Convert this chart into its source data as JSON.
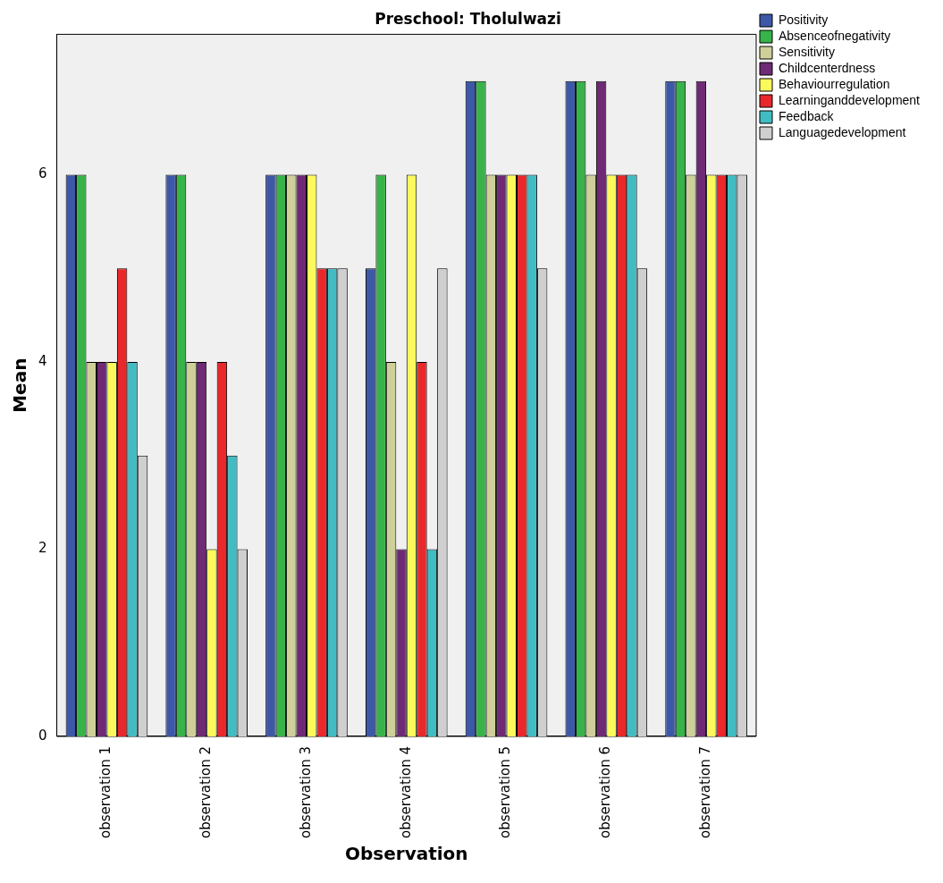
{
  "chart_data": {
    "type": "bar",
    "title": "Preschool: Tholulwazi",
    "xlabel": "Observation",
    "ylabel": "Mean",
    "categories": [
      "observation 1",
      "observation 2",
      "observation 3",
      "observation 4",
      "observation 5",
      "observation 6",
      "observation 7"
    ],
    "series": [
      {
        "name": "Positivity",
        "color": "#3e58a8",
        "values": [
          6,
          6,
          6,
          5,
          7,
          7,
          7
        ]
      },
      {
        "name": "Absenceofnegativity",
        "color": "#37b34a",
        "values": [
          6,
          6,
          6,
          6,
          7,
          7,
          7
        ]
      },
      {
        "name": "Sensitivity",
        "color": "#cfcf9a",
        "values": [
          4,
          4,
          6,
          4,
          6,
          6,
          6
        ]
      },
      {
        "name": "Childcenterdness",
        "color": "#6e2a74",
        "values": [
          4,
          4,
          6,
          2,
          6,
          7,
          7
        ]
      },
      {
        "name": "Behaviourregulation",
        "color": "#fbf95b",
        "values": [
          4,
          2,
          6,
          6,
          6,
          6,
          6
        ]
      },
      {
        "name": "Learninganddevelopment",
        "color": "#e8282b",
        "values": [
          5,
          4,
          5,
          4,
          6,
          6,
          6
        ]
      },
      {
        "name": "Feedback",
        "color": "#41bcc3",
        "values": [
          4,
          3,
          5,
          2,
          6,
          6,
          6
        ]
      },
      {
        "name": "Languagedevelopment",
        "color": "#cfcfcf",
        "values": [
          3,
          2,
          5,
          5,
          5,
          5,
          6
        ]
      }
    ],
    "ylim": [
      0,
      7.5
    ],
    "yticks": [
      0,
      2,
      4,
      6
    ],
    "grid": false,
    "legend": "right"
  }
}
